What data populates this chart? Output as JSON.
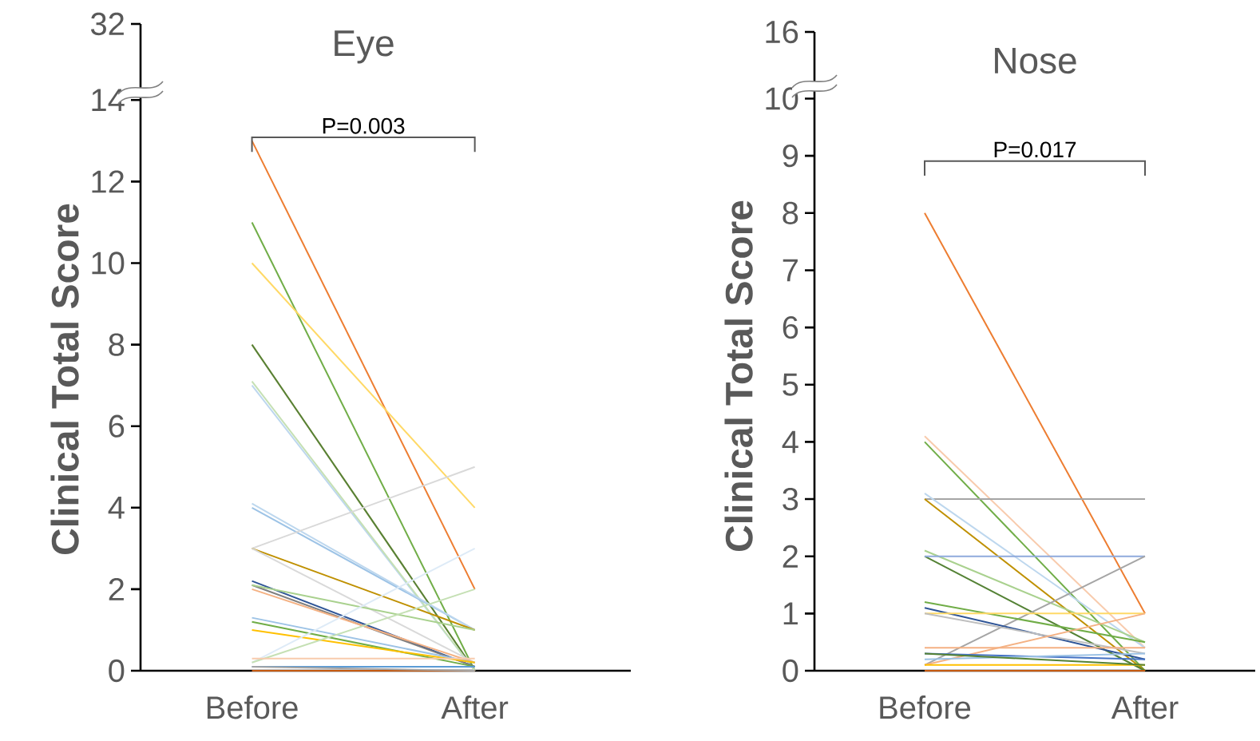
{
  "chart_data": [
    {
      "type": "line",
      "title": "Eye",
      "ylabel": "Clinical Total Score",
      "categories": [
        "Before",
        "After"
      ],
      "marker": "none",
      "ylim": [
        0,
        14.3
      ],
      "yticks": [
        0,
        2,
        4,
        6,
        8,
        10,
        12,
        14
      ],
      "annotations": [
        "32",
        "P=0.003"
      ],
      "series": [
        {
          "color": "#ed7d31",
          "values": [
            13,
            2
          ]
        },
        {
          "color": "#70ad47",
          "values": [
            11,
            0
          ]
        },
        {
          "color": "#ffd966",
          "values": [
            10,
            4
          ]
        },
        {
          "color": "#f8cbad",
          "values": [
            8,
            0
          ]
        },
        {
          "color": "#548235",
          "values": [
            8,
            0
          ]
        },
        {
          "color": "#bdd7ee",
          "values": [
            7,
            0
          ]
        },
        {
          "color": "#c5e0b4",
          "values": [
            7.1,
            0
          ]
        },
        {
          "color": "#9dc3e6",
          "values": [
            4,
            1
          ]
        },
        {
          "color": "#bdd7ee",
          "values": [
            4.1,
            1
          ]
        },
        {
          "color": "#d9d9d9",
          "values": [
            3,
            5
          ]
        },
        {
          "color": "#bf9000",
          "values": [
            3,
            1
          ]
        },
        {
          "color": "#d9d9d9",
          "values": [
            3,
            0.2
          ]
        },
        {
          "color": "#2f5597",
          "values": [
            2.2,
            0.1
          ]
        },
        {
          "color": "#7f7f7f",
          "values": [
            2.1,
            0.1
          ]
        },
        {
          "color": "#f4b183",
          "values": [
            2,
            0.2
          ]
        },
        {
          "color": "#a9d18e",
          "values": [
            2.1,
            1
          ]
        },
        {
          "color": "#9dc3e6",
          "values": [
            1.3,
            0.2
          ]
        },
        {
          "color": "#70ad47",
          "values": [
            1.2,
            0.1
          ]
        },
        {
          "color": "#ffc000",
          "values": [
            1,
            0.2
          ]
        },
        {
          "color": "#deebf7",
          "values": [
            0.2,
            3
          ]
        },
        {
          "color": "#c5e0b4",
          "values": [
            0.2,
            2
          ]
        },
        {
          "color": "#f8cbad",
          "values": [
            0.3,
            0.3
          ]
        },
        {
          "color": "#5b9bd5",
          "values": [
            0.1,
            0.1
          ]
        },
        {
          "color": "#c55a11",
          "values": [
            0,
            0
          ]
        },
        {
          "color": "#a5a5a5",
          "values": [
            0.1,
            0
          ]
        }
      ]
    },
    {
      "type": "line",
      "title": "Nose",
      "ylabel": "Clinical Total Score",
      "categories": [
        "Before",
        "After"
      ],
      "marker": "none",
      "ylim": [
        0,
        10.3
      ],
      "yticks": [
        0,
        1,
        2,
        3,
        4,
        5,
        6,
        7,
        8,
        9,
        10
      ],
      "annotations": [
        "16",
        "P=0.017"
      ],
      "series": [
        {
          "color": "#ed7d31",
          "values": [
            8,
            1
          ]
        },
        {
          "color": "#f8cbad",
          "values": [
            4.1,
            0.4
          ]
        },
        {
          "color": "#70ad47",
          "values": [
            4,
            0
          ]
        },
        {
          "color": "#a5a5a5",
          "values": [
            3,
            3
          ]
        },
        {
          "color": "#bdd7ee",
          "values": [
            3.1,
            0.4
          ]
        },
        {
          "color": "#bf9000",
          "values": [
            3,
            0
          ]
        },
        {
          "color": "#a9d18e",
          "values": [
            2.1,
            0.5
          ]
        },
        {
          "color": "#548235",
          "values": [
            2,
            0
          ]
        },
        {
          "color": "#8faadc",
          "values": [
            2,
            2
          ]
        },
        {
          "color": "#a5a5a5",
          "values": [
            0.1,
            2
          ]
        },
        {
          "color": "#70ad47",
          "values": [
            1.2,
            0.5
          ]
        },
        {
          "color": "#2f5597",
          "values": [
            1.1,
            0.2
          ]
        },
        {
          "color": "#ffd966",
          "values": [
            1,
            1
          ]
        },
        {
          "color": "#bfbfbf",
          "values": [
            1,
            0.3
          ]
        },
        {
          "color": "#f4b183",
          "values": [
            0.1,
            1
          ]
        },
        {
          "color": "#f4b183",
          "values": [
            0.4,
            0.4
          ]
        },
        {
          "color": "#4472c4",
          "values": [
            0.3,
            0.2
          ]
        },
        {
          "color": "#ffc000",
          "values": [
            0.1,
            0.1
          ]
        },
        {
          "color": "#9dc3e6",
          "values": [
            0.2,
            0.3
          ]
        },
        {
          "color": "#c55a11",
          "values": [
            0,
            0
          ]
        },
        {
          "color": "#548235",
          "values": [
            0.3,
            0.1
          ]
        }
      ]
    }
  ]
}
